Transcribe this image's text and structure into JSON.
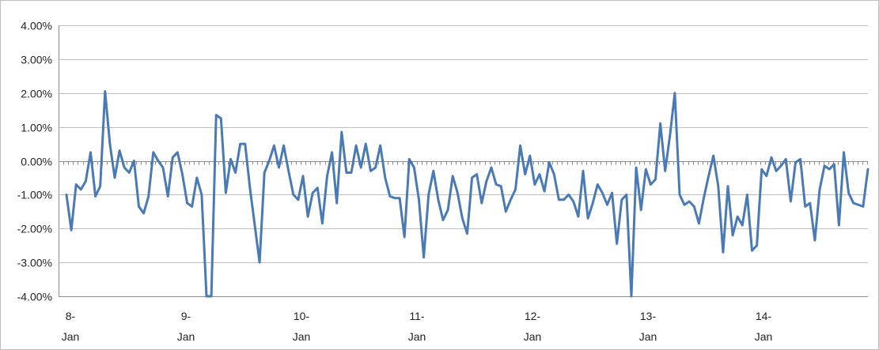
{
  "colors": {
    "line": "#4a7ab5",
    "grid": "#bfbfbf",
    "axis": "#8c8c8c",
    "text": "#222222"
  },
  "chart_data": {
    "type": "line",
    "title": "",
    "xlabel": "",
    "ylabel": "",
    "ylim": [
      -0.04,
      0.04
    ],
    "y_tick_labels": [
      "4.00%",
      "3.00%",
      "2.00%",
      "1.00%",
      "0.00%",
      "-1.00%",
      "-2.00%",
      "-3.00%",
      "-4.00%"
    ],
    "y_ticks": [
      0.04,
      0.03,
      0.02,
      0.01,
      0.0,
      -0.01,
      -0.02,
      -0.03,
      -0.04
    ],
    "x_tick_labels": [
      {
        "line1": "8-",
        "line2": "Jan"
      },
      {
        "line1": "9-",
        "line2": "Jan"
      },
      {
        "line1": "10-",
        "line2": "Jan"
      },
      {
        "line1": "11-",
        "line2": "Jan"
      },
      {
        "line1": "12-",
        "line2": "Jan"
      },
      {
        "line1": "13-",
        "line2": "Jan"
      },
      {
        "line1": "14-",
        "line2": "Jan"
      }
    ],
    "x_unit": "day",
    "x_start_day": 8,
    "samples_per_day": 24,
    "grid": "horizontal",
    "legend": "none",
    "series": [
      {
        "values": [
          -0.01,
          -0.0205,
          -0.007,
          -0.0085,
          -0.006,
          0.0025,
          -0.0105,
          -0.0075,
          0.0205,
          0.005,
          -0.005,
          0.003,
          -0.002,
          -0.0035,
          0.0,
          -0.0135,
          -0.0155,
          -0.0105,
          0.0025,
          0.0,
          -0.002,
          -0.0105,
          0.001,
          0.0025,
          -0.004,
          -0.0125,
          -0.0135,
          -0.005,
          -0.01,
          -0.04,
          -0.04,
          0.0135,
          0.0125,
          -0.0095,
          0.0005,
          -0.0035,
          0.005,
          0.005,
          -0.008,
          -0.019,
          -0.03,
          -0.0035,
          0.0,
          0.0045,
          -0.002,
          0.0045,
          -0.003,
          -0.01,
          -0.0115,
          -0.0045,
          -0.0165,
          -0.0095,
          -0.008,
          -0.0185,
          -0.0045,
          0.0025,
          -0.0125,
          0.0085,
          -0.0035,
          -0.0035,
          0.0045,
          -0.002,
          0.005,
          -0.003,
          -0.002,
          0.0045,
          -0.005,
          -0.0105,
          -0.011,
          -0.011,
          -0.0225,
          0.0005,
          -0.002,
          -0.0115,
          -0.0285,
          -0.01,
          -0.003,
          -0.0115,
          -0.0175,
          -0.0145,
          -0.0045,
          -0.0095,
          -0.017,
          -0.0215,
          -0.005,
          -0.004,
          -0.0125,
          -0.006,
          -0.002,
          -0.007,
          -0.0075,
          -0.015,
          -0.0115,
          -0.0085,
          0.0045,
          -0.004,
          0.0015,
          -0.007,
          -0.004,
          -0.009,
          -0.0005,
          -0.004,
          -0.0115,
          -0.0115,
          -0.01,
          -0.012,
          -0.0165,
          -0.003,
          -0.017,
          -0.0125,
          -0.007,
          -0.0095,
          -0.013,
          -0.0095,
          -0.0245,
          -0.0115,
          -0.01,
          -0.04,
          -0.002,
          -0.0145,
          -0.0025,
          -0.007,
          -0.0055,
          0.011,
          -0.003,
          0.0075,
          0.02,
          -0.01,
          -0.013,
          -0.012,
          -0.0135,
          -0.0185,
          -0.011,
          -0.0045,
          0.0015,
          -0.0075,
          -0.027,
          -0.0075,
          -0.022,
          -0.0165,
          -0.019,
          -0.01,
          -0.0265,
          -0.025,
          -0.0025,
          -0.0045,
          0.001,
          -0.003,
          -0.0015,
          0.0005,
          -0.012,
          -0.0005,
          0.0005,
          -0.0135,
          -0.0125,
          -0.0235,
          -0.0085,
          -0.0015,
          -0.0025,
          -0.001,
          -0.019,
          0.0025,
          -0.0095,
          -0.0125,
          -0.013,
          -0.0135,
          -0.0025
        ]
      }
    ]
  }
}
